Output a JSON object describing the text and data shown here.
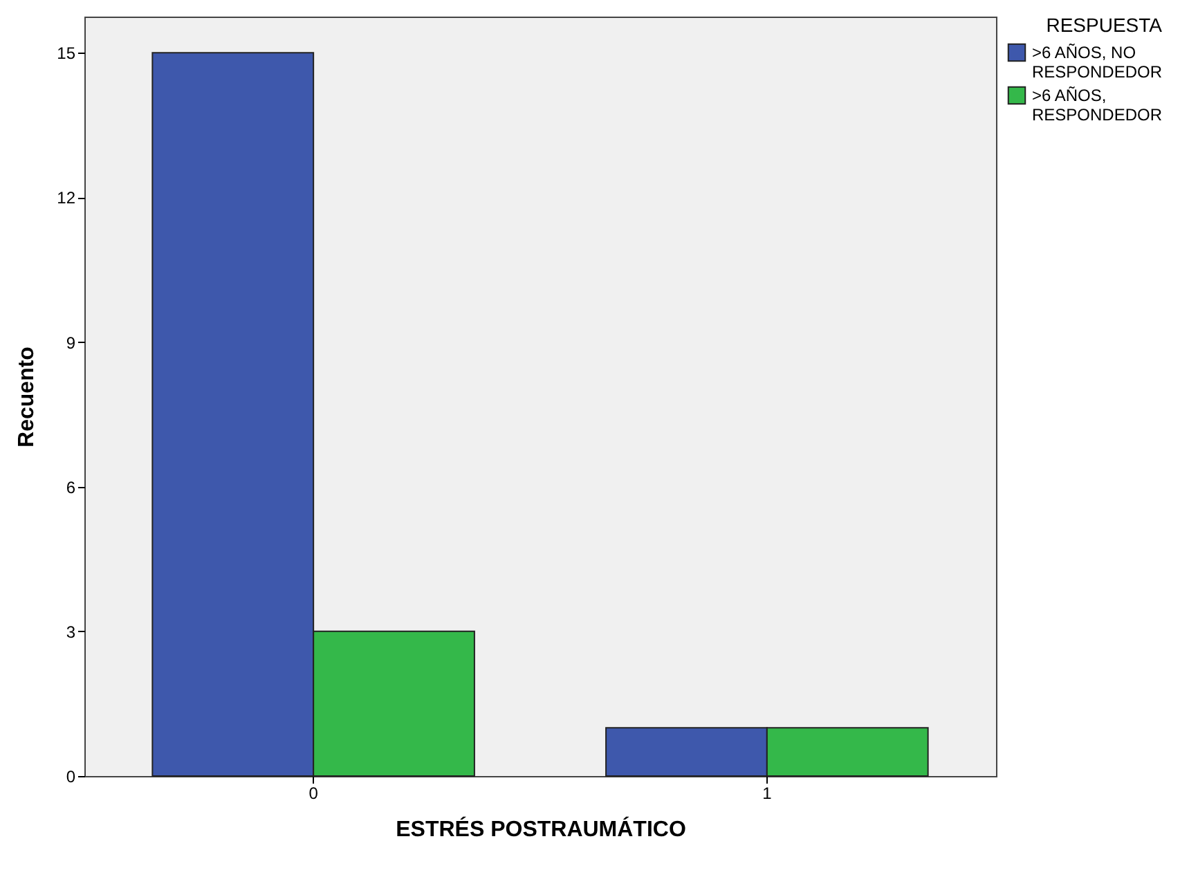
{
  "chart_data": {
    "type": "bar",
    "xlabel": "ESTRÉS POSTRAUMÁTICO",
    "ylabel": "Recuento",
    "legend_title": "RESPUESTA",
    "categories": [
      "0",
      "1"
    ],
    "series": [
      {
        "name": ">6 AÑOS, NO RESPONDEDOR",
        "color": "#3e58ac",
        "values": [
          15,
          1
        ]
      },
      {
        "name": ">6 AÑOS, RESPONDEDOR",
        "color": "#34b84a",
        "values": [
          3,
          1
        ]
      }
    ],
    "ylim": [
      0,
      15.75
    ],
    "yticks": [
      0,
      3,
      6,
      9,
      12,
      15
    ],
    "grid": false,
    "legend": "top right"
  }
}
